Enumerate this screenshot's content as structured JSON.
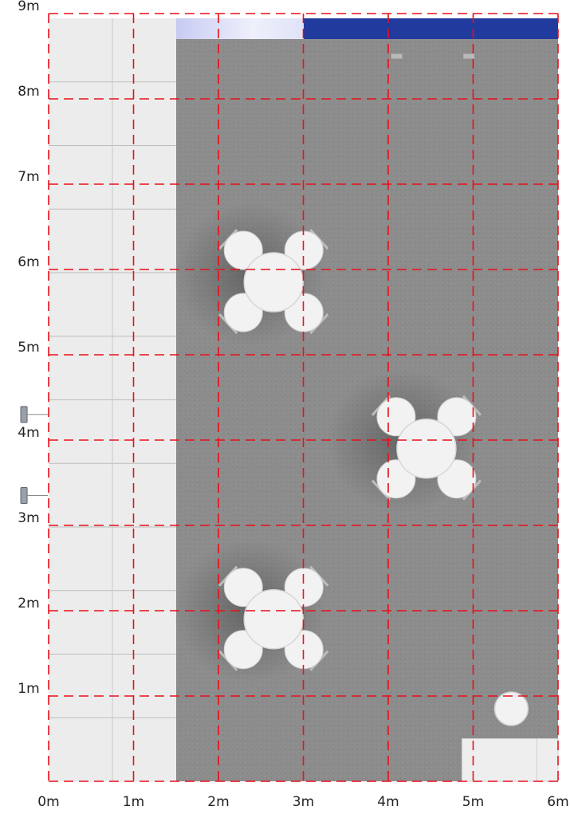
{
  "axes": {
    "x_labels": [
      "0m",
      "1m",
      "2m",
      "3m",
      "4m",
      "5m",
      "6m"
    ],
    "y_labels": [
      "1m",
      "2m",
      "3m",
      "4m",
      "5m",
      "6m",
      "7m",
      "8m",
      "9m"
    ],
    "unit": "m",
    "x_range": [
      0,
      6
    ],
    "y_range": [
      0,
      9
    ]
  },
  "colors": {
    "grid": "#e8101a",
    "carpet": "#8c8c8c",
    "wall_panel": "#ececec",
    "backwall": "#213a9e",
    "furniture": "#f2f2f2"
  },
  "floor": {
    "wall_strip_x": [
      0,
      1.5
    ],
    "carpet_x": [
      1.5,
      6
    ],
    "backwall_x": [
      3,
      6
    ],
    "backwall_glow_x": [
      1.5,
      3
    ]
  },
  "furniture": {
    "table_sets": [
      {
        "x": 2.65,
        "y": 5.85,
        "chairs": 4
      },
      {
        "x": 4.45,
        "y": 3.9,
        "chairs": 4
      },
      {
        "x": 2.65,
        "y": 1.9,
        "chairs": 4
      }
    ],
    "stool": {
      "x": 5.45,
      "y": 0.85
    },
    "counter": {
      "x": [
        4.85,
        6
      ],
      "y": [
        0,
        0.5
      ]
    },
    "wall_lights": [
      {
        "x": -0.3,
        "y": 4.3
      },
      {
        "x": -0.3,
        "y": 3.35
      }
    ]
  }
}
